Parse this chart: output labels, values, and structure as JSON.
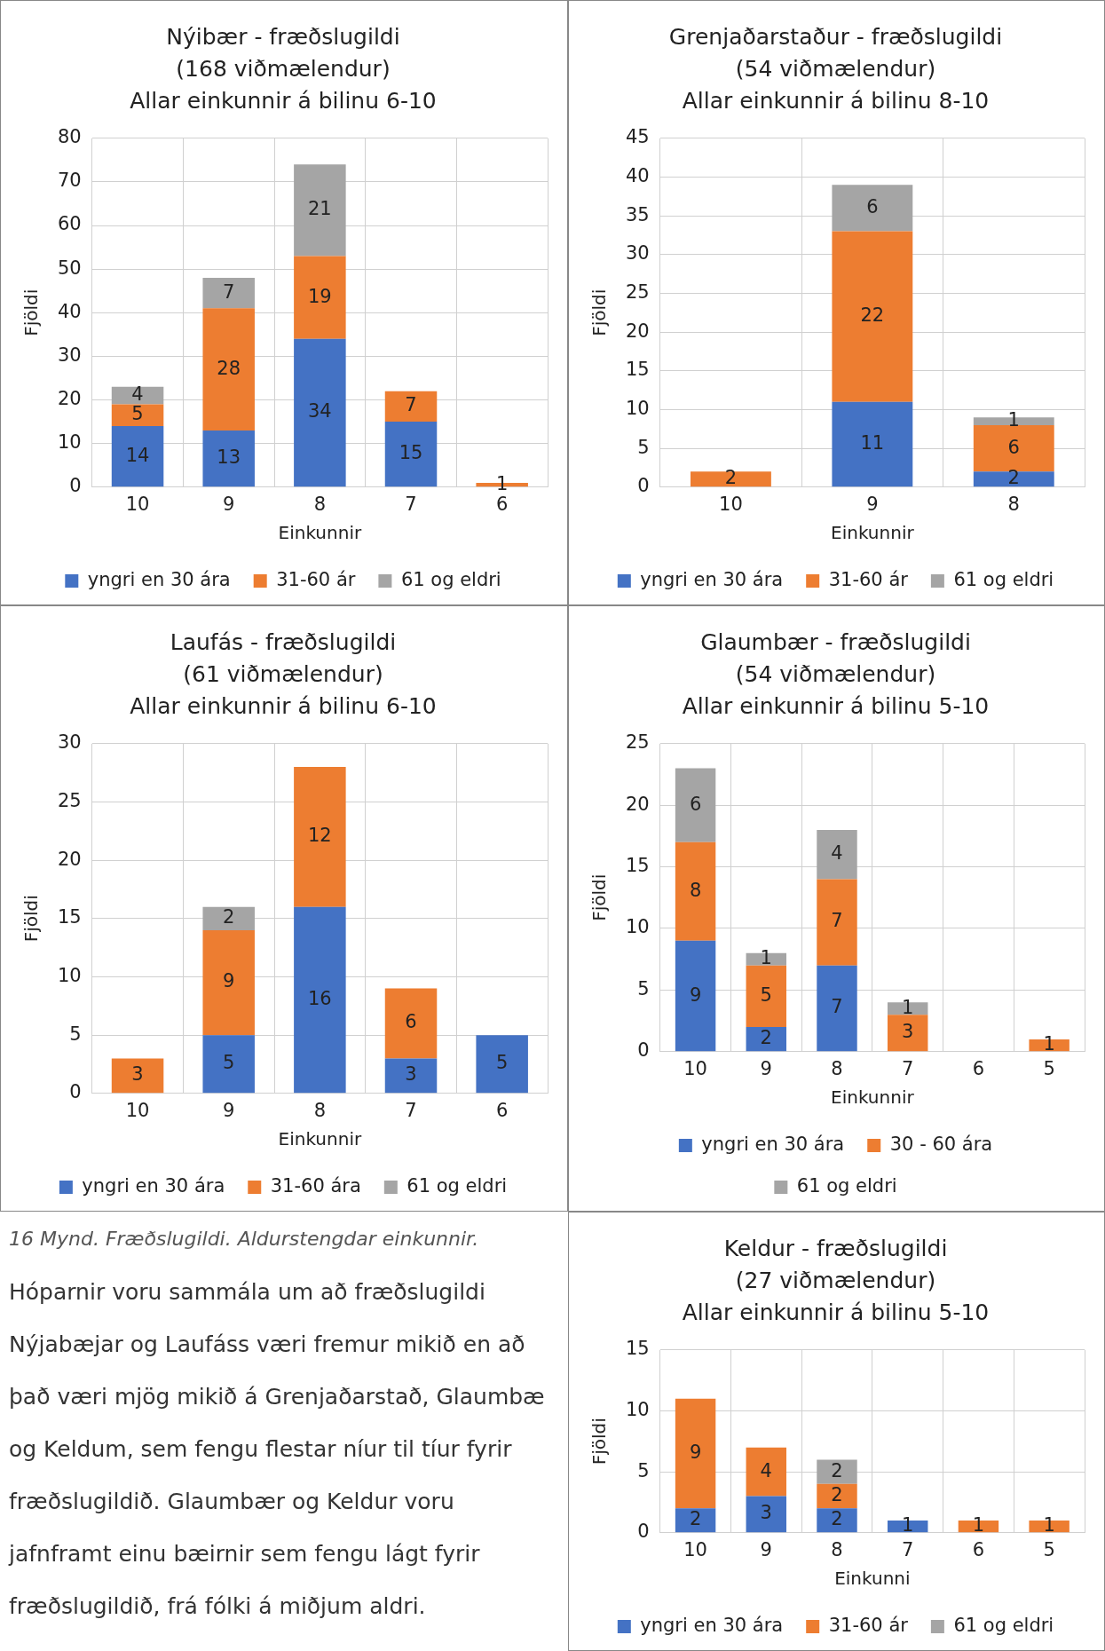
{
  "chart_data": [
    {
      "type": "bar",
      "title": "Nýibær - fræðslugildi\n(168 viðmælendur)\nAllar einkunnir á bilinu 6-10",
      "xlabel": "Einkunnir",
      "ylabel": "Fjöldi",
      "categories": [
        "10",
        "9",
        "8",
        "7",
        "6"
      ],
      "stacked": true,
      "data_labels": true,
      "grid": true,
      "legend": "bottom",
      "ylim": [
        0,
        80
      ],
      "yticks": [
        0,
        10,
        20,
        30,
        40,
        50,
        60,
        70,
        80
      ],
      "series": [
        {
          "name": "yngri en 30 ára",
          "color": "#4472c4",
          "values": [
            14,
            13,
            34,
            15,
            null
          ]
        },
        {
          "name": "31-60 ár",
          "color": "#ed7d31",
          "values": [
            5,
            28,
            19,
            7,
            1
          ]
        },
        {
          "name": "61 og eldri",
          "color": "#a5a5a5",
          "values": [
            4,
            7,
            21,
            null,
            null
          ]
        }
      ]
    },
    {
      "type": "bar",
      "title": "Grenjaðarstaður - fræðslugildi\n(54 viðmælendur)\nAllar einkunnir á bilinu 8-10",
      "xlabel": "Einkunnir",
      "ylabel": "Fjöldi",
      "categories": [
        "10",
        "9",
        "8"
      ],
      "stacked": true,
      "data_labels": true,
      "grid": true,
      "legend": "bottom",
      "ylim": [
        0,
        45
      ],
      "yticks": [
        0,
        5,
        10,
        15,
        20,
        25,
        30,
        35,
        40,
        45
      ],
      "series": [
        {
          "name": "yngri en 30 ára",
          "color": "#4472c4",
          "values": [
            null,
            11,
            2
          ]
        },
        {
          "name": "31-60 ár",
          "color": "#ed7d31",
          "values": [
            2,
            22,
            6
          ]
        },
        {
          "name": "61 og eldri",
          "color": "#a5a5a5",
          "values": [
            null,
            6,
            1
          ]
        }
      ]
    },
    {
      "type": "bar",
      "title": "Laufás - fræðslugildi\n(61 viðmælendur)\nAllar einkunnir á bilinu 6-10",
      "xlabel": "Einkunnir",
      "ylabel": "Fjöldi",
      "categories": [
        "10",
        "9",
        "8",
        "7",
        "6"
      ],
      "stacked": true,
      "data_labels": true,
      "grid": true,
      "legend": "bottom",
      "ylim": [
        0,
        30
      ],
      "yticks": [
        0,
        5,
        10,
        15,
        20,
        25,
        30
      ],
      "series": [
        {
          "name": "yngri en 30 ára",
          "color": "#4472c4",
          "values": [
            null,
            5,
            16,
            3,
            5
          ]
        },
        {
          "name": "31-60 ára",
          "color": "#ed7d31",
          "values": [
            3,
            9,
            12,
            6,
            null
          ]
        },
        {
          "name": "61 og eldri",
          "color": "#a5a5a5",
          "values": [
            null,
            2,
            null,
            null,
            null
          ]
        }
      ]
    },
    {
      "type": "bar",
      "title": "Glaumbær - fræðslugildi\n(54 viðmælendur)\nAllar einkunnir á bilinu 5-10",
      "xlabel": "Einkunnir",
      "ylabel": "Fjöldi",
      "categories": [
        "10",
        "9",
        "8",
        "7",
        "6",
        "5"
      ],
      "stacked": true,
      "data_labels": true,
      "grid": true,
      "legend": "bottom",
      "ylim": [
        0,
        25
      ],
      "yticks": [
        0,
        5,
        10,
        15,
        20,
        25
      ],
      "series": [
        {
          "name": "yngri en 30 ára",
          "color": "#4472c4",
          "values": [
            9,
            2,
            7,
            null,
            null,
            null
          ]
        },
        {
          "name": "30 - 60 ára",
          "color": "#ed7d31",
          "values": [
            8,
            5,
            7,
            3,
            null,
            1
          ]
        },
        {
          "name": "61 og eldri",
          "color": "#a5a5a5",
          "values": [
            6,
            1,
            4,
            1,
            null,
            null
          ]
        }
      ]
    },
    {
      "type": "other",
      "annotations": [
        "16 Mynd. Fræðslugildi. Aldurstengdar einkunnir.",
        "Hóparnir voru sammála um að fræðslugildi Nýjabæjar og Laufáss væri fremur mikið en að það væri mjög mikið á Grenjaðarstað, Glaumbæ og Keldum, sem fengu flestar níur til tíur fyrir fræðslugildið. Glaumbær og Keldur voru jafnframt einu bæirnir sem fengu lágt fyrir fræðslugildið, frá fólki á miðjum aldri."
      ]
    },
    {
      "type": "bar",
      "title": "Keldur - fræðslugildi\n(27 viðmælendur)\nAllar einkunnir á bilinu 5-10",
      "xlabel": "Einkunni",
      "ylabel": "Fjöldi",
      "categories": [
        "10",
        "9",
        "8",
        "7",
        "6",
        "5"
      ],
      "stacked": true,
      "data_labels": true,
      "grid": true,
      "legend": "bottom",
      "ylim": [
        0,
        15
      ],
      "yticks": [
        0,
        5,
        10,
        15
      ],
      "series": [
        {
          "name": "yngri en 30 ára",
          "color": "#4472c4",
          "values": [
            2,
            3,
            2,
            1,
            null,
            null
          ]
        },
        {
          "name": "31-60 ár",
          "color": "#ed7d31",
          "values": [
            9,
            4,
            2,
            null,
            1,
            1
          ]
        },
        {
          "name": "61 og eldri",
          "color": "#a5a5a5",
          "values": [
            null,
            null,
            2,
            null,
            null,
            null
          ]
        }
      ]
    }
  ]
}
